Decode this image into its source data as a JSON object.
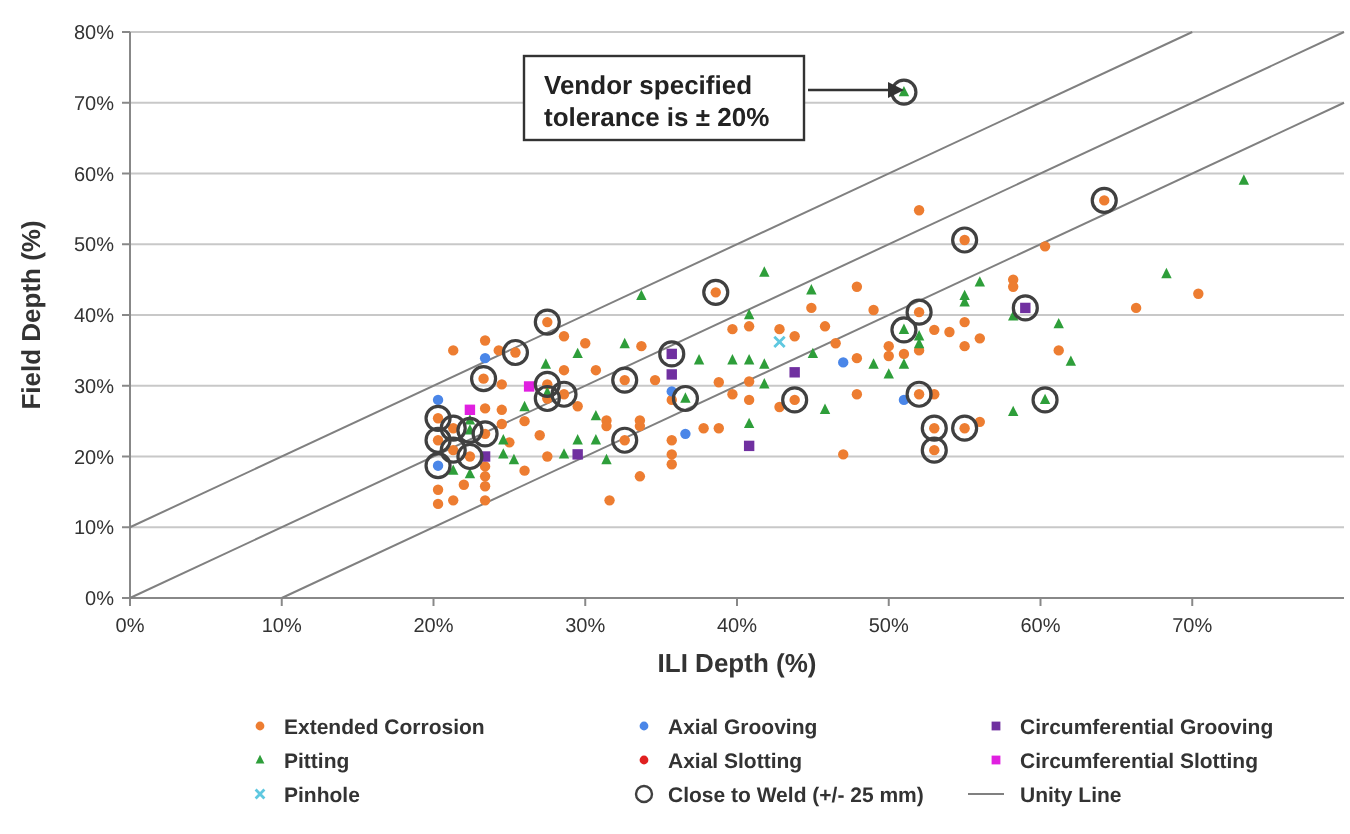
{
  "chart_data": {
    "type": "scatter",
    "xlabel": "ILI Depth (%)",
    "ylabel": "Field Depth (%)",
    "xlim": [
      0,
      80
    ],
    "ylim": [
      0,
      80
    ],
    "xticks": [
      {
        "value": 0,
        "label": "0%"
      },
      {
        "value": 10,
        "label": "10%"
      },
      {
        "value": 20,
        "label": "20%"
      },
      {
        "value": 30,
        "label": "30%"
      },
      {
        "value": 40,
        "label": "40%"
      },
      {
        "value": 50,
        "label": "50%"
      },
      {
        "value": 60,
        "label": "60%"
      },
      {
        "value": 70,
        "label": "70%"
      }
    ],
    "yticks": [
      {
        "value": 0,
        "label": "0%"
      },
      {
        "value": 10,
        "label": "10%"
      },
      {
        "value": 20,
        "label": "20%"
      },
      {
        "value": 30,
        "label": "30%"
      },
      {
        "value": 40,
        "label": "40%"
      },
      {
        "value": 50,
        "label": "50%"
      },
      {
        "value": 60,
        "label": "60%"
      },
      {
        "value": 70,
        "label": "70%"
      },
      {
        "value": 80,
        "label": "80%"
      }
    ],
    "grid": "y",
    "legend": "bottom",
    "annotations": [
      "Vendor specified\ntolerance is ± 20%"
    ],
    "series": [
      {
        "name": "Extended Corrosion",
        "color": "#ed7d31",
        "marker": "circle",
        "x": [
          64.2,
          52,
          55,
          60.3,
          70.4,
          66.3,
          58.2,
          58.2,
          52,
          53,
          54,
          55,
          56,
          55,
          61.2,
          52,
          50,
          50,
          51,
          52,
          53,
          56,
          53,
          55,
          53,
          38.6,
          47.9,
          44.9,
          49,
          27.5,
          39.7,
          40.8,
          42.8,
          45.8,
          43.8,
          28.6,
          25.4,
          33.7,
          47.9,
          28.6,
          30.7,
          32.6,
          34.6,
          38.8,
          40.8,
          27.5,
          28.6,
          27.5,
          35.7,
          39.7,
          40.8,
          43.8,
          42.8,
          47.9,
          37.8,
          38.8,
          35.7,
          32.6,
          33.6,
          33.6,
          31.4,
          31.4,
          29.5,
          47,
          35.7,
          35.7,
          27.5,
          33.6,
          31.6,
          46.5,
          30,
          23.4,
          24.3,
          21.3,
          23.3,
          24.5,
          20.3,
          21.3,
          23.4,
          20.3,
          22.4,
          21.3,
          23.4,
          23.4,
          23.4,
          23.4,
          23.4,
          20.3,
          20.3,
          21.3,
          24.5,
          24.5,
          22,
          25,
          26,
          27,
          26
        ],
        "values": [
          56.2,
          54.8,
          50.6,
          49.7,
          43,
          41,
          45,
          44,
          40.4,
          37.9,
          37.6,
          39,
          36.7,
          35.6,
          35,
          35,
          35.6,
          34.2,
          34.5,
          28.8,
          28.8,
          24.9,
          24,
          24,
          20.9,
          43.2,
          44,
          41,
          40.7,
          39,
          38,
          38.4,
          38,
          38.4,
          37,
          37,
          34.7,
          35.6,
          33.9,
          32.2,
          32.2,
          30.8,
          30.8,
          30.5,
          30.6,
          30.2,
          28.8,
          28.2,
          28,
          28.8,
          28,
          28,
          27,
          28.8,
          24,
          24,
          22.3,
          22.3,
          25.1,
          24.3,
          25.1,
          24.3,
          27.1,
          20.3,
          20.3,
          18.9,
          20,
          17.2,
          13.8,
          36,
          36,
          36.4,
          35,
          35,
          31,
          30.2,
          25.4,
          24,
          23.2,
          22.3,
          20,
          20.9,
          26.8,
          18.6,
          17.2,
          15.8,
          13.8,
          15.3,
          13.3,
          13.8,
          26.6,
          24.6,
          16,
          22,
          25,
          23,
          18
        ]
      },
      {
        "name": "Axial Grooving",
        "color": "#4a86e8",
        "marker": "circle",
        "x": [
          51,
          47,
          36.6,
          23.4,
          20.3,
          20.3,
          35.7
        ],
        "values": [
          28,
          33.3,
          23.2,
          33.9,
          28,
          18.7,
          29.2
        ]
      },
      {
        "name": "Circumferential Grooving",
        "color": "#7030a0",
        "marker": "square",
        "x": [
          59,
          35.7,
          43.8,
          35.7,
          40.8,
          29.5,
          23.4
        ],
        "values": [
          41,
          34.5,
          31.9,
          31.6,
          21.5,
          20.3,
          20
        ]
      },
      {
        "name": "Pitting",
        "color": "#2e9e3a",
        "marker": "triangle",
        "x": [
          73.4,
          68.3,
          56,
          55,
          55,
          58.2,
          61.2,
          51,
          52,
          52,
          62,
          51,
          50,
          60.3,
          58.2,
          51,
          41.8,
          33.7,
          44.9,
          40.8,
          29.5,
          32.6,
          45,
          49,
          37.5,
          39.7,
          40.8,
          41.8,
          27.4,
          41.8,
          36.6,
          45.8,
          40.8,
          30.7,
          30.7,
          29.5,
          31.4,
          28.6,
          25.3,
          22.4,
          22.4,
          24.6,
          24.6,
          21.3,
          22.4,
          26,
          27.5
        ],
        "values": [
          59,
          45.8,
          44.6,
          42.7,
          41.8,
          39.8,
          38.7,
          37.9,
          37,
          35.9,
          33.4,
          33,
          31.6,
          28,
          26.3,
          71.5,
          46,
          42.7,
          43.5,
          40,
          34.5,
          35.9,
          34.5,
          33,
          33.6,
          33.6,
          33.6,
          33,
          33,
          30.2,
          28.2,
          26.6,
          24.6,
          25.7,
          22.3,
          22.3,
          19.5,
          20.3,
          19.5,
          25.1,
          23.7,
          22.3,
          20.3,
          18,
          17.5,
          27,
          29
        ]
      },
      {
        "name": "Axial Slotting",
        "color": "#e02020",
        "marker": "circle"
      },
      {
        "name": "Circumferential Slotting",
        "color": "#e020e0",
        "marker": "square",
        "x": [
          26.3,
          22.4
        ],
        "values": [
          29.9,
          26.6
        ]
      },
      {
        "name": "Pinhole",
        "color": "#5fc8e0",
        "marker": "cross",
        "x": [
          42.8
        ],
        "values": [
          36.2
        ]
      },
      {
        "name": "Close to Weld (+/- 25 mm)",
        "type": "bubble",
        "color": "#404040",
        "sizes": [
          1,
          1,
          1,
          1,
          1,
          1,
          1,
          1,
          1,
          1,
          1,
          1,
          1,
          1,
          1,
          1,
          1,
          1,
          1,
          1,
          1,
          1,
          1,
          1,
          1,
          1,
          1,
          1,
          1,
          1,
          1
        ],
        "x": [
          51,
          64.2,
          55,
          38.6,
          52,
          59,
          27.5,
          51,
          25.4,
          35.7,
          23.3,
          32.6,
          27.5,
          28.6,
          27.5,
          36.6,
          43.8,
          52,
          60.3,
          20.3,
          21.3,
          23.4,
          22.4,
          20.3,
          21.3,
          22.4,
          20.3,
          32.6,
          53,
          55,
          53
        ],
        "values": [
          71.5,
          56.2,
          50.6,
          43.2,
          40.4,
          41,
          39,
          37.9,
          34.7,
          34.5,
          31,
          30.8,
          30.2,
          28.8,
          28.2,
          28.2,
          28,
          28.8,
          28,
          25.4,
          24,
          23.2,
          23.7,
          22.3,
          20.9,
          20,
          18.7,
          22.3,
          24,
          24,
          20.9
        ]
      },
      {
        "name": "Unity Line",
        "type": "line",
        "color": "#808080",
        "x": [
          0,
          80
        ],
        "values": [
          0,
          80
        ]
      },
      {
        "type": "line",
        "color": "#808080",
        "x": [
          0,
          70
        ],
        "values": [
          10,
          80
        ]
      },
      {
        "type": "line",
        "color": "#808080",
        "x": [
          10,
          80
        ],
        "values": [
          0,
          70
        ]
      }
    ]
  }
}
